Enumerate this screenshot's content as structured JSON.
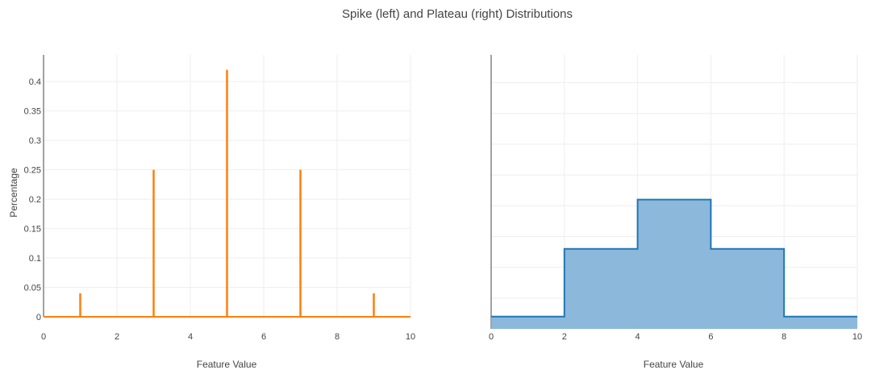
{
  "title": "Spike (left) and Plateau (right) Distributions",
  "chart_data": [
    {
      "type": "bar",
      "style": "spike",
      "x": [
        1,
        3,
        5,
        7,
        9
      ],
      "values": [
        0.04,
        0.25,
        0.42,
        0.25,
        0.04
      ],
      "xlabel": "Feature Value",
      "ylabel": "Percentage",
      "xlim": [
        0,
        10
      ],
      "ylim": [
        0,
        0.44
      ],
      "x_ticks": [
        "0",
        "2",
        "4",
        "6",
        "8",
        "10"
      ],
      "y_ticks": [
        "0",
        "0.05",
        "0.1",
        "0.15",
        "0.2",
        "0.25",
        "0.3",
        "0.35",
        "0.4"
      ],
      "color": "#ff7f0e",
      "grid": true
    },
    {
      "type": "area",
      "style": "step",
      "bins": [
        [
          0,
          2
        ],
        [
          2,
          4
        ],
        [
          4,
          6
        ],
        [
          6,
          8
        ],
        [
          8,
          10
        ]
      ],
      "values": [
        0.02,
        0.13,
        0.21,
        0.13,
        0.02
      ],
      "xlabel": "Feature Value",
      "xlim": [
        0,
        10
      ],
      "ylim": [
        0,
        0.44
      ],
      "x_ticks": [
        "0",
        "2",
        "4",
        "6",
        "8",
        "10"
      ],
      "line_color": "#1f77b4",
      "fill_color": "#7fb0d8",
      "grid": true
    }
  ]
}
